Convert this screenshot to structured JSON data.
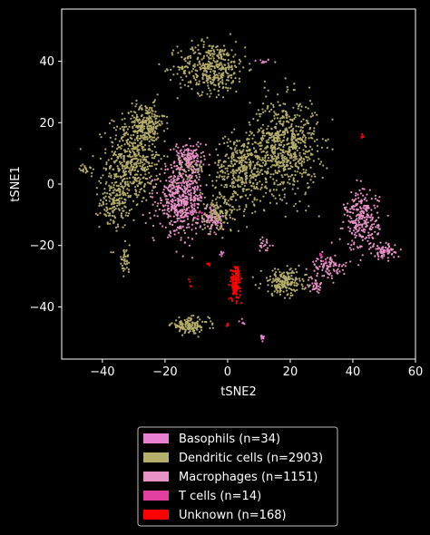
{
  "chart_data": {
    "type": "scatter",
    "xlabel": "tSNE2",
    "ylabel": "tSNE1",
    "xlim": [
      -53,
      60
    ],
    "ylim": [
      -57,
      57
    ],
    "x_ticks": [
      -40,
      -20,
      0,
      20,
      40,
      60
    ],
    "y_ticks": [
      -40,
      -20,
      0,
      20,
      40
    ],
    "x_tick_labels": [
      "−40",
      "−20",
      "0",
      "20",
      "40",
      "60"
    ],
    "y_tick_labels": [
      "−40",
      "−20",
      "0",
      "20",
      "40"
    ],
    "grid": false,
    "legend_position": "below plot, centered",
    "series": [
      {
        "name": "Basophils (n=34)",
        "color": "#e87fd0",
        "clusters": [
          {
            "center": [
              11,
              40
            ],
            "spread": [
              2.5,
              0.6
            ],
            "count": 10
          },
          {
            "center": [
              11,
              -50
            ],
            "spread": [
              0.8,
              1.2
            ],
            "count": 12
          },
          {
            "center": [
              5,
              -45
            ],
            "spread": [
              1.2,
              1.2
            ],
            "count": 6
          },
          {
            "center": [
              -2,
              -23
            ],
            "spread": [
              1,
              1.2
            ],
            "count": 6
          }
        ]
      },
      {
        "name": "Dendritic cells (n=2903)",
        "color": "#b5ad6a",
        "clusters": [
          {
            "center": [
              -30,
              8
            ],
            "spread": [
              7,
              12
            ],
            "count": 500
          },
          {
            "center": [
              -36,
              -6
            ],
            "spread": [
              4,
              7
            ],
            "count": 160
          },
          {
            "center": [
              -26,
              20
            ],
            "spread": [
              5,
              5
            ],
            "count": 180
          },
          {
            "center": [
              -45,
              5
            ],
            "spread": [
              2,
              2
            ],
            "count": 20
          },
          {
            "center": [
              -5,
              38
            ],
            "spread": [
              9,
              7
            ],
            "count": 400
          },
          {
            "center": [
              18,
              12
            ],
            "spread": [
              9,
              13
            ],
            "count": 700
          },
          {
            "center": [
              4,
              5
            ],
            "spread": [
              7,
              9
            ],
            "count": 350
          },
          {
            "center": [
              -3,
              -10
            ],
            "spread": [
              6,
              5
            ],
            "count": 150
          },
          {
            "center": [
              18,
              -32
            ],
            "spread": [
              6,
              3.5
            ],
            "count": 200
          },
          {
            "center": [
              -12,
              -46
            ],
            "spread": [
              5,
              2
            ],
            "count": 140
          },
          {
            "center": [
              -33,
              -25
            ],
            "spread": [
              1.5,
              3
            ],
            "count": 40
          },
          {
            "center": [
              -12,
              5
            ],
            "spread": [
              4,
              4
            ],
            "count": 63
          }
        ]
      },
      {
        "name": "Macrophages (n=1151)",
        "color": "#e891c6",
        "clusters": [
          {
            "center": [
              -15,
              -5
            ],
            "spread": [
              6,
              9
            ],
            "count": 500
          },
          {
            "center": [
              -12,
              9
            ],
            "spread": [
              4,
              4
            ],
            "count": 120
          },
          {
            "center": [
              -5,
              -12
            ],
            "spread": [
              3,
              4
            ],
            "count": 60
          },
          {
            "center": [
              43,
              -12
            ],
            "spread": [
              4.5,
              8
            ],
            "count": 260
          },
          {
            "center": [
              50,
              -22
            ],
            "spread": [
              3,
              2
            ],
            "count": 70
          },
          {
            "center": [
              32,
              -27
            ],
            "spread": [
              5,
              3
            ],
            "count": 90
          },
          {
            "center": [
              28,
              -33
            ],
            "spread": [
              2,
              2
            ],
            "count": 30
          },
          {
            "center": [
              12,
              -20
            ],
            "spread": [
              2,
              3
            ],
            "count": 21
          }
        ]
      },
      {
        "name": "T cells (n=14)",
        "color": "#e03fa0",
        "clusters": [
          {
            "center": [
              -10,
              -10
            ],
            "spread": [
              2,
              3
            ],
            "count": 7
          },
          {
            "center": [
              30,
              -25
            ],
            "spread": [
              2,
              2
            ],
            "count": 7
          }
        ]
      },
      {
        "name": "Unknown (n=168)",
        "color": "#ff0000",
        "clusters": [
          {
            "center": [
              2.5,
              -32
            ],
            "spread": [
              1.3,
              4.5
            ],
            "count": 140
          },
          {
            "center": [
              43,
              15.5
            ],
            "spread": [
              0.4,
              0.4
            ],
            "count": 12
          },
          {
            "center": [
              0,
              -46
            ],
            "spread": [
              0.6,
              0.5
            ],
            "count": 6
          },
          {
            "center": [
              -12,
              -32
            ],
            "spread": [
              0.3,
              1
            ],
            "count": 4
          },
          {
            "center": [
              -6,
              -26
            ],
            "spread": [
              0.8,
              0.4
            ],
            "count": 6
          }
        ]
      }
    ]
  }
}
